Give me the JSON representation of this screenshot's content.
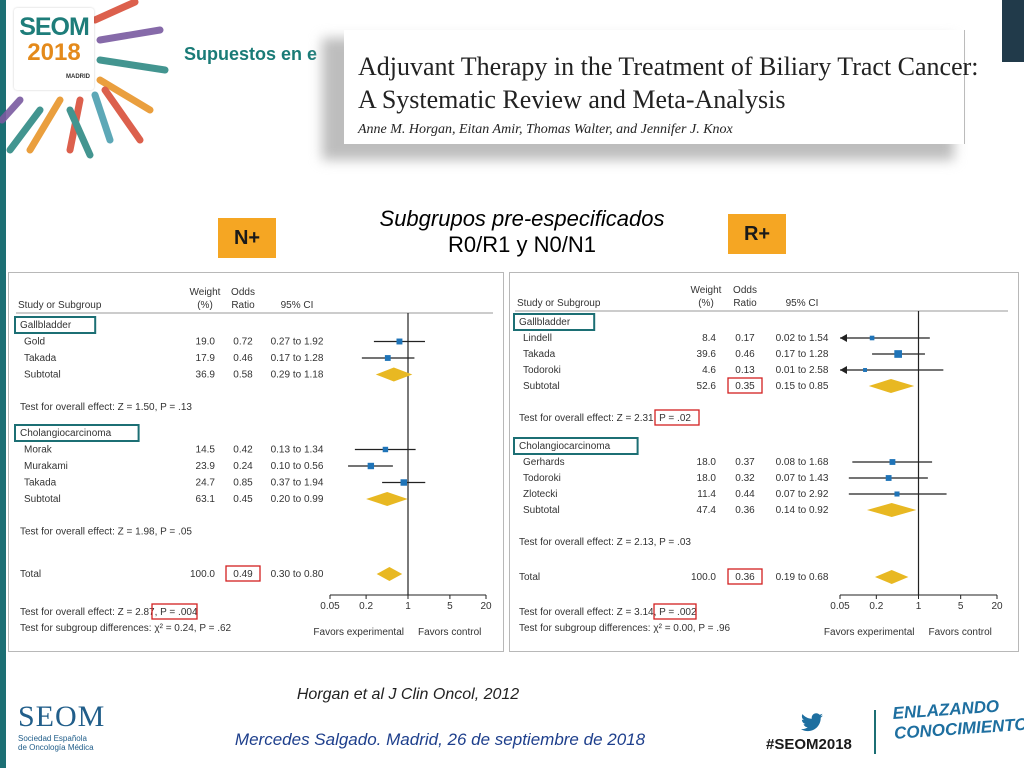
{
  "header": {
    "slide_title": "Supuestos en e",
    "logo": {
      "brand": "SEOM",
      "year": "2018",
      "city": "MADRID"
    }
  },
  "paper": {
    "title_line1": "Adjuvant Therapy in the Treatment of Biliary Tract Cancer:",
    "title_line2": "A Systematic Review and Meta-Analysis",
    "authors": "Anne M. Horgan, Eitan Amir, Thomas Walter, and Jennifer J. Knox"
  },
  "subgroups_title": {
    "line1": "Subgrupos pre-especificados",
    "line2": "R0/R1 y N0/N1"
  },
  "badges": {
    "left": "N+",
    "right": "R+"
  },
  "forest_n": {
    "columns": {
      "study": "Study or Subgroup",
      "weight_l1": "Weight",
      "weight_l2": "(%)",
      "or_l1": "Odds",
      "or_l2": "Ratio",
      "ci": "95% CI"
    },
    "groups": [
      {
        "name": "Gallbladder",
        "rows": [
          {
            "study": "Gold",
            "weight": "19.0",
            "or": "0.72",
            "ci": "0.27 to 1.92",
            "or_val": 0.72,
            "lo": 0.27,
            "hi": 1.92
          },
          {
            "study": "Takada",
            "weight": "17.9",
            "or": "0.46",
            "ci": "0.17 to 1.28",
            "or_val": 0.46,
            "lo": 0.17,
            "hi": 1.28
          }
        ],
        "subtotal": {
          "label": "Subtotal",
          "weight": "36.9",
          "or": "0.58",
          "ci": "0.29 to 1.18",
          "or_val": 0.58,
          "lo": 0.29,
          "hi": 1.18
        },
        "test": "Test for overall effect: Z = 1.50, P = .13"
      },
      {
        "name": "Cholangiocarcinoma",
        "rows": [
          {
            "study": "Morak",
            "weight": "14.5",
            "or": "0.42",
            "ci": "0.13 to 1.34",
            "or_val": 0.42,
            "lo": 0.13,
            "hi": 1.34
          },
          {
            "study": "Murakami",
            "weight": "23.9",
            "or": "0.24",
            "ci": "0.10 to 0.56",
            "or_val": 0.24,
            "lo": 0.1,
            "hi": 0.56
          },
          {
            "study": "Takada",
            "weight": "24.7",
            "or": "0.85",
            "ci": "0.37 to 1.94",
            "or_val": 0.85,
            "lo": 0.37,
            "hi": 1.94
          }
        ],
        "subtotal": {
          "label": "Subtotal",
          "weight": "63.1",
          "or": "0.45",
          "ci": "0.20 to 0.99",
          "or_val": 0.45,
          "lo": 0.2,
          "hi": 0.99
        },
        "test": "Test for overall effect: Z = 1.98, P = .05"
      }
    ],
    "total": {
      "label": "Total",
      "weight": "100.0",
      "or": "0.49",
      "ci": "0.30 to 0.80",
      "or_val": 0.49,
      "lo": 0.3,
      "hi": 0.8
    },
    "test_overall": "Test for overall effect: Z = 2.87, P = .004",
    "test_subgroup": "Test for subgroup differences: χ² = 0.24, P = .62",
    "axis_ticks": [
      "0.05",
      "0.2",
      "1",
      "5",
      "20"
    ],
    "axis_left": "Favors experimental",
    "axis_right": "Favors control"
  },
  "forest_r": {
    "columns": {
      "study": "Study or Subgroup",
      "weight_l1": "Weight",
      "weight_l2": "(%)",
      "or_l1": "Odds",
      "or_l2": "Ratio",
      "ci": "95% CI"
    },
    "groups": [
      {
        "name": "Gallbladder",
        "rows": [
          {
            "study": "Lindell",
            "weight": "8.4",
            "or": "0.17",
            "ci": "0.02 to 1.54",
            "or_val": 0.17,
            "lo": 0.02,
            "hi": 1.54
          },
          {
            "study": "Takada",
            "weight": "39.6",
            "or": "0.46",
            "ci": "0.17 to 1.28",
            "or_val": 0.46,
            "lo": 0.17,
            "hi": 1.28
          },
          {
            "study": "Todoroki",
            "weight": "4.6",
            "or": "0.13",
            "ci": "0.01 to 2.58",
            "or_val": 0.13,
            "lo": 0.01,
            "hi": 2.58
          }
        ],
        "subtotal": {
          "label": "Subtotal",
          "weight": "52.6",
          "or": "0.35",
          "ci": "0.15 to 0.85",
          "or_val": 0.35,
          "lo": 0.15,
          "hi": 0.85
        },
        "test": "Test for overall effect: Z = 2.31, P = .02"
      },
      {
        "name": "Cholangiocarcinoma",
        "rows": [
          {
            "study": "Gerhards",
            "weight": "18.0",
            "or": "0.37",
            "ci": "0.08 to 1.68",
            "or_val": 0.37,
            "lo": 0.08,
            "hi": 1.68
          },
          {
            "study": "Todoroki",
            "weight": "18.0",
            "or": "0.32",
            "ci": "0.07 to 1.43",
            "or_val": 0.32,
            "lo": 0.07,
            "hi": 1.43
          },
          {
            "study": "Zlotecki",
            "weight": "11.4",
            "or": "0.44",
            "ci": "0.07 to 2.92",
            "or_val": 0.44,
            "lo": 0.07,
            "hi": 2.92
          }
        ],
        "subtotal": {
          "label": "Subtotal",
          "weight": "47.4",
          "or": "0.36",
          "ci": "0.14 to 0.92",
          "or_val": 0.36,
          "lo": 0.14,
          "hi": 0.92
        },
        "test": "Test for overall effect: Z = 2.13, P = .03"
      }
    ],
    "total": {
      "label": "Total",
      "weight": "100.0",
      "or": "0.36",
      "ci": "0.19 to 0.68",
      "or_val": 0.36,
      "lo": 0.19,
      "hi": 0.68
    },
    "test_overall": "Test for overall effect: Z = 3.14, P = .002",
    "test_subgroup": "Test for subgroup differences: χ² = 0.00, P = .96",
    "axis_ticks": [
      "0.05",
      "0.2",
      "1",
      "5",
      "20"
    ],
    "axis_left": "Favors experimental",
    "axis_right": "Favors control"
  },
  "citation": "Horgan et al J Clin Oncol, 2012",
  "footer": {
    "seom": "SEOM",
    "org_l1": "Sociedad Española",
    "org_l2": "de Oncología Médica",
    "author": "Mercedes Salgado. Madrid, 26 de septiembre de 2018",
    "hashtag": "#SEOM2018",
    "slogan_l1": "ENLAZANDO",
    "slogan_l2": "CONOCIMIENTO"
  },
  "colors": {
    "accent_teal": "#1c6f74",
    "badge_orange": "#f5a623",
    "diamond": "#e8b822",
    "marker": "#1f74b8",
    "highlight_red": "#d32020"
  }
}
